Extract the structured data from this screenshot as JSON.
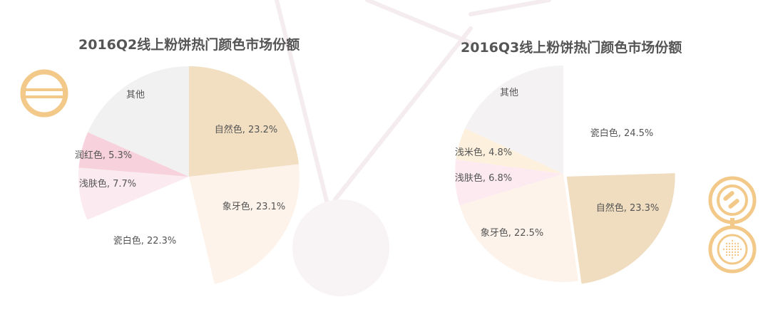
{
  "colors": {
    "background": "#ffffff",
    "title": "#555555",
    "label": "#555555",
    "accent_gold": "#f3c98a",
    "decor_line": "#f3eaee"
  },
  "icons": [
    "powder-compact-icon-left",
    "powder-compact-icon-right"
  ],
  "chart_data": [
    {
      "type": "pie",
      "title": "2016Q2线上粉饼热门颜色市场份额",
      "unit": "%",
      "slices": [
        {
          "name": "自然色",
          "value": 23.2,
          "label": "自然色, 23.2%",
          "color": "#f2dfc2"
        },
        {
          "name": "象牙色",
          "value": 23.1,
          "label": "象牙色, 23.1%",
          "color": "#fdf3ea"
        },
        {
          "name": "瓷白色",
          "value": 22.3,
          "label": "瓷白色, 22.3%",
          "color": "#ffffff"
        },
        {
          "name": "浅肤色",
          "value": 7.7,
          "label": "浅肤色, 7.7%",
          "color": "#fbeaf0"
        },
        {
          "name": "润红色",
          "value": 5.3,
          "label": "润红色, 5.3%",
          "color": "#f7d2dd"
        },
        {
          "name": "其他",
          "value": 18.4,
          "label": "其他",
          "color": "#f2f1f1"
        }
      ]
    },
    {
      "type": "pie",
      "title": "2016Q3线上粉饼热门颜色市场份额",
      "unit": "%",
      "slices": [
        {
          "name": "瓷白色",
          "value": 24.5,
          "label": "瓷白色, 24.5%",
          "color": "#ffffff"
        },
        {
          "name": "自然色",
          "value": 23.3,
          "label": "自然色, 23.3%",
          "color": "#f0dcbf"
        },
        {
          "name": "象牙色",
          "value": 22.5,
          "label": "象牙色, 22.5%",
          "color": "#fdf3ea"
        },
        {
          "name": "浅肤色",
          "value": 6.8,
          "label": "浅肤色, 6.8%",
          "color": "#fceaf0"
        },
        {
          "name": "浅米色",
          "value": 4.8,
          "label": "浅米色, 4.8%",
          "color": "#fdf1de"
        },
        {
          "name": "其他",
          "value": 18.1,
          "label": "其他",
          "color": "#f4f2f3"
        }
      ]
    }
  ]
}
